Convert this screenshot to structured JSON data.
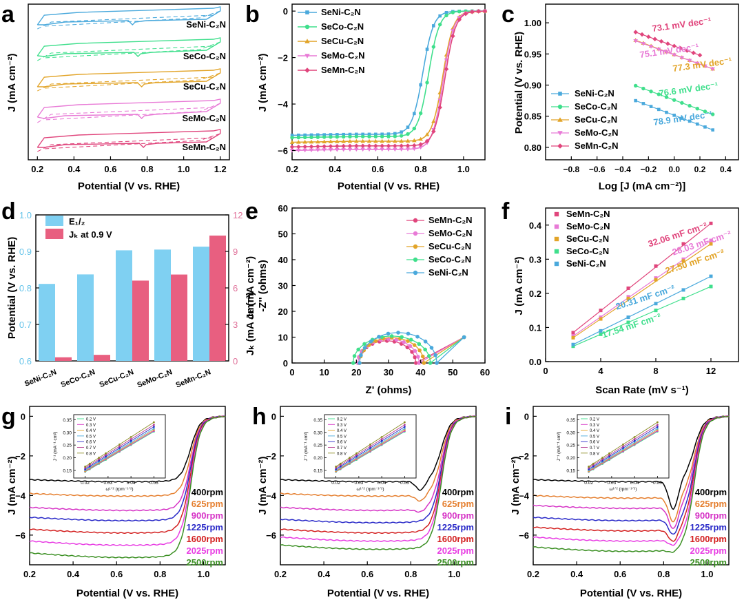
{
  "figure": {
    "panel_letters": [
      "a",
      "b",
      "c",
      "d",
      "e",
      "f",
      "g",
      "h",
      "i"
    ]
  },
  "colors": {
    "SeNi": "#4aa9dc",
    "SeCo": "#3fdf8c",
    "SeCu": "#e2a428",
    "SeMo": "#e87ad6",
    "SeMn": "#e0457c",
    "J400": "#000000",
    "J625": "#e57f2f",
    "J900": "#d633c6",
    "J1225": "#2a2ac8",
    "J1600": "#d31f1f",
    "J2025": "#e83de3",
    "J2500": "#3a8f22",
    "barE": "#7fd0f2",
    "barJ": "#e85f80",
    "axisRight": "#e0729a",
    "axisLeft": "#66c4ea"
  },
  "chart_data": [
    {
      "panel": "a",
      "type": "line",
      "title": "",
      "xlabel": "Potential (V vs. RHE)",
      "ylabel": "J (mA cm⁻²)",
      "xlim": [
        0.15,
        1.25
      ],
      "xticks": [
        "0.2",
        "0.4",
        "0.6",
        "0.8",
        "1.0",
        "1.2"
      ],
      "series": [
        {
          "name": "SeNi-C₂N",
          "key": "SeNi",
          "feature_x": 0.72
        },
        {
          "name": "SeCo-C₂N",
          "key": "SeCo",
          "feature_x": 0.75
        },
        {
          "name": "SeCu-C₂N",
          "key": "SeCu",
          "feature_x": 0.77
        },
        {
          "name": "SeMo-C₂N",
          "key": "SeMo",
          "feature_x": 0.77
        },
        {
          "name": "SeMn-C₂N",
          "key": "SeMn",
          "feature_x": 0.78
        }
      ],
      "series_labels": [
        "SeNi-C₂N",
        "SeCo-C₂N",
        "SeCu-C₂N",
        "SeMo-C₂N",
        "SeMn-C₂N"
      ]
    },
    {
      "panel": "b",
      "type": "line",
      "xlabel": "Potential (V vs. RHE)",
      "ylabel": "J (mA cm⁻²)",
      "xlim": [
        0.2,
        1.1
      ],
      "ylim": [
        -6.4,
        0.3
      ],
      "xticks": [
        "0.2",
        "0.4",
        "0.6",
        "0.8",
        "1.0"
      ],
      "yticks": [
        "0",
        "−2",
        "−4",
        "−6"
      ],
      "series": [
        {
          "name": "SeNi-C₂N",
          "key": "SeNi",
          "jl": -5.3,
          "e_half": 0.81
        },
        {
          "name": "SeCo-C₂N",
          "key": "SeCo",
          "jl": -5.4,
          "e_half": 0.837
        },
        {
          "name": "SeCu-C₂N",
          "key": "SeCu",
          "jl": -5.6,
          "e_half": 0.903
        },
        {
          "name": "SeMo-C₂N",
          "key": "SeMo",
          "jl": -5.95,
          "e_half": 0.905
        },
        {
          "name": "SeMn-C₂N",
          "key": "SeMn",
          "jl": -5.8,
          "e_half": 0.913
        }
      ],
      "legend": [
        "SeNi-C₂N",
        "SeCo-C₂N",
        "SeCu-C₂N",
        "SeMo-C₂N",
        "SeMn-C₂N"
      ]
    },
    {
      "panel": "c",
      "type": "scatter",
      "xlabel": "Log [J (mA cm⁻²)]",
      "ylabel": "Potential (V vs. RHE)",
      "xlim": [
        -1.0,
        0.5
      ],
      "ylim": [
        0.78,
        1.03
      ],
      "xticks": [
        "−0.8",
        "−0.6",
        "−0.4",
        "−0.2",
        "0.0",
        "0.2",
        "0.4"
      ],
      "yticks": [
        "0.80",
        "0.85",
        "0.90",
        "0.95",
        "1.00"
      ],
      "series": [
        {
          "name": "SeNi-C₂N",
          "key": "SeNi",
          "x_start": -0.3,
          "x_end": 0.3,
          "y_start": 0.875,
          "y_end": 0.828,
          "tafel": "78.9 mV dec⁻¹"
        },
        {
          "name": "SeCo-C₂N",
          "key": "SeCo",
          "x_start": -0.3,
          "x_end": 0.3,
          "y_start": 0.899,
          "y_end": 0.853,
          "tafel": "76.6 mV dec⁻¹"
        },
        {
          "name": "SeCu-C₂N",
          "key": "SeCu",
          "x_start": -0.3,
          "x_end": 0.3,
          "y_start": 0.972,
          "y_end": 0.926,
          "tafel": "77.3 mV dec⁻¹"
        },
        {
          "name": "SeMo-C₂N",
          "key": "SeMo",
          "x_start": -0.3,
          "x_end": 0.3,
          "y_start": 0.971,
          "y_end": 0.926,
          "tafel": "75.1 mV dec⁻¹"
        },
        {
          "name": "SeMn-C₂N",
          "key": "SeMn",
          "x_start": -0.3,
          "x_end": 0.2,
          "y_start": 0.985,
          "y_end": 0.948,
          "tafel": "73.1 mV dec⁻¹"
        }
      ],
      "legend": [
        "SeNi-C₂N",
        "SeCo-C₂N",
        "SeCu-C₂N",
        "SeMo-C₂N",
        "SeMn-C₂N"
      ],
      "tafel_labels": [
        "73.1 mV dec⁻¹",
        "75.1 mV dec⁻¹",
        "77.3 mV dec⁻¹",
        "76.6 mV dec⁻¹",
        "78.9 mV dec⁻¹"
      ]
    },
    {
      "panel": "d",
      "type": "bar",
      "categories": [
        "SeNi-C₂N",
        "SeCo-C₂N",
        "SeCu-C₂N",
        "SeMo-C₂N",
        "SeMn-C₂N"
      ],
      "series": [
        {
          "name": "E₁/₂",
          "axis": "left",
          "values": [
            0.811,
            0.837,
            0.903,
            0.905,
            0.913
          ]
        },
        {
          "name": "Jₖ at 0.9 V",
          "axis": "right",
          "values": [
            0.3,
            0.5,
            6.6,
            7.1,
            10.3
          ]
        }
      ],
      "ylabel_left": "Potential (V vs. RHE)",
      "ylabel_right": "Jₖ (mA cm⁻²)",
      "ylim_left": [
        0.6,
        1.0
      ],
      "ylim_right": [
        0,
        12
      ],
      "yticks_left": [
        "0.6",
        "0.7",
        "0.8",
        "0.9",
        "1.0"
      ],
      "yticks_right": [
        "0",
        "3",
        "6",
        "9",
        "12"
      ],
      "legend": [
        "E₁/₂",
        "Jₖ at 0.9 V"
      ]
    },
    {
      "panel": "e",
      "type": "scatter",
      "xlabel": "Z' (ohms)",
      "ylabel": "-Z'' (ohms)",
      "xlim": [
        0,
        60
      ],
      "ylim": [
        0,
        60
      ],
      "xticks": [
        "0",
        "10",
        "20",
        "30",
        "40",
        "50",
        "60"
      ],
      "yticks": [
        "0",
        "10",
        "20",
        "30",
        "40",
        "50",
        "60"
      ],
      "series": [
        {
          "name": "SeMn-C₂N",
          "key": "SeMn",
          "center": 29.5,
          "radius": 9.0,
          "scale": 1.7,
          "tail_start": 38.5,
          "tail_end": 53.5,
          "tail_top": 10
        },
        {
          "name": "SeMo-C₂N",
          "key": "SeMo",
          "center": 30.0,
          "radius": 9.5,
          "scale": 1.75,
          "tail_start": 39.5,
          "tail_end": 53.5,
          "tail_top": 10
        },
        {
          "name": "SeCu-C₂N",
          "key": "SeCu",
          "center": 31.0,
          "radius": 10.0,
          "scale": 1.75,
          "tail_start": 41.0,
          "tail_end": 53.5,
          "tail_top": 10
        },
        {
          "name": "SeCo-C₂N",
          "key": "SeCo",
          "center": 31.0,
          "radius": 12.0,
          "scale": 1.55,
          "tail_start": 43.0,
          "tail_end": 53.5,
          "tail_top": 10
        },
        {
          "name": "SeNi-C₂N",
          "key": "SeNi",
          "center": 33.0,
          "radius": 12.0,
          "scale": 1.75,
          "tail_start": 45.0,
          "tail_end": 53.5,
          "tail_top": 10
        }
      ],
      "legend": [
        "SeMn-C₂N",
        "SeMo-C₂N",
        "SeCu-C₂N",
        "SeCo-C₂N",
        "SeNi-C₂N"
      ]
    },
    {
      "panel": "f",
      "type": "scatter",
      "xlabel": "Scan Rate (mV s⁻¹)",
      "ylabel": "J (mA cm⁻²)",
      "xlim": [
        0,
        14
      ],
      "ylim": [
        0,
        0.45
      ],
      "xticks": [
        "0",
        "4",
        "8",
        "12"
      ],
      "yticks": [
        "0.0",
        "0.1",
        "0.2",
        "0.3",
        "0.4"
      ],
      "x": [
        2,
        4,
        6,
        8,
        10,
        12
      ],
      "series": [
        {
          "name": "SeMn-C₂N",
          "key": "SeMn",
          "values": [
            0.085,
            0.15,
            0.215,
            0.28,
            0.345,
            0.405
          ],
          "cdl": "32.06 mF cm⁻²"
        },
        {
          "name": "SeMo-C₂N",
          "key": "SeMo",
          "values": [
            0.075,
            0.13,
            0.19,
            0.245,
            0.3,
            0.355
          ],
          "cdl": "28.03 mF cm⁻²"
        },
        {
          "name": "SeCu-C₂N",
          "key": "SeCu",
          "values": [
            0.07,
            0.125,
            0.185,
            0.24,
            0.295,
            0.345
          ],
          "cdl": "27.50 mF cm⁻²"
        },
        {
          "name": "SeCo-C₂N",
          "key": "SeCo",
          "values": [
            0.045,
            0.08,
            0.115,
            0.15,
            0.185,
            0.22
          ],
          "cdl": "17.54 mF cm⁻²"
        },
        {
          "name": "SeNi-C₂N",
          "key": "SeNi",
          "values": [
            0.05,
            0.09,
            0.13,
            0.17,
            0.21,
            0.25
          ],
          "cdl": "20.31 mF cm⁻²"
        }
      ],
      "legend": [
        "SeMn-C₂N",
        "SeMo-C₂N",
        "SeCu-C₂N",
        "SeCo-C₂N",
        "SeNi-C₂N"
      ],
      "cdl_labels": [
        "32.06 mF cm⁻²",
        "28.03 mF cm⁻²",
        "27.50 mF cm⁻²",
        "20.31 mF cm⁻²",
        "17.54 mF cm⁻²"
      ]
    },
    {
      "panel": "g",
      "type": "line",
      "xlabel": "Potential (V vs. RHE)",
      "ylabel": "J (mA cm⁻²)",
      "xlim": [
        0.2,
        1.1
      ],
      "ylim": [
        -7.5,
        0.5
      ],
      "xticks": [
        "0.2",
        "0.4",
        "0.6",
        "0.8",
        "1.0"
      ],
      "yticks": [
        "0",
        "−2",
        "−4",
        "−6"
      ],
      "series": [
        {
          "name": "400rpm",
          "key": "J400",
          "jl": -3.2,
          "peak": 0
        },
        {
          "name": "625rpm",
          "key": "J625",
          "jl": -3.9,
          "peak": 0
        },
        {
          "name": "900rpm",
          "key": "J900",
          "jl": -4.6,
          "peak": 0
        },
        {
          "name": "1225rpm",
          "key": "J1225",
          "jl": -5.1,
          "peak": 0
        },
        {
          "name": "1600rpm",
          "key": "J1600",
          "jl": -5.7,
          "peak": 0
        },
        {
          "name": "2025rpm",
          "key": "J2025",
          "jl": -6.3,
          "peak": 0
        },
        {
          "name": "2500rpm",
          "key": "J2500",
          "jl": -6.9,
          "peak": 0
        }
      ],
      "labels": [
        "400rpm",
        "625rpm",
        "900rpm",
        "1225rpm",
        "1600rpm",
        "2025rpm",
        "2500rpm"
      ]
    },
    {
      "panel": "h",
      "type": "line",
      "xlabel": "Potential (V vs. RHE)",
      "ylabel": "J (mA cm⁻²)",
      "xlim": [
        0.2,
        1.1
      ],
      "ylim": [
        -7.5,
        0.5
      ],
      "xticks": [
        "0.2",
        "0.4",
        "0.6",
        "0.8",
        "1.0"
      ],
      "yticks": [
        "0",
        "−2",
        "−4",
        "−6"
      ],
      "series": [
        {
          "name": "400rpm",
          "key": "J400",
          "jl": -3.2,
          "peak": 0.3
        },
        {
          "name": "625rpm",
          "key": "J625",
          "jl": -3.9,
          "peak": 0.2
        },
        {
          "name": "900rpm",
          "key": "J900",
          "jl": -4.6,
          "peak": 0.1
        },
        {
          "name": "1225rpm",
          "key": "J1225",
          "jl": -5.2,
          "peak": 0
        },
        {
          "name": "1600rpm",
          "key": "J1600",
          "jl": -5.7,
          "peak": 0
        },
        {
          "name": "2025rpm",
          "key": "J2025",
          "jl": -6.1,
          "peak": 0
        },
        {
          "name": "2500rpm",
          "key": "J2500",
          "jl": -6.5,
          "peak": 0
        }
      ],
      "labels": [
        "400rpm",
        "625rpm",
        "900rpm",
        "1225rpm",
        "1600rpm",
        "2025rpm",
        "2500rpm"
      ]
    },
    {
      "panel": "i",
      "type": "line",
      "xlabel": "Potential (V vs. RHE)",
      "ylabel": "J (mA cm⁻²)",
      "xlim": [
        0.2,
        1.1
      ],
      "ylim": [
        -7.5,
        0.5
      ],
      "xticks": [
        "0.2",
        "0.4",
        "0.6",
        "0.8",
        "1.0"
      ],
      "yticks": [
        "0",
        "−2",
        "−4",
        "−6"
      ],
      "series": [
        {
          "name": "400rpm",
          "key": "J400",
          "jl": -3.2,
          "peak": 0.9
        },
        {
          "name": "625rpm",
          "key": "J625",
          "jl": -4.0,
          "peak": 0.8
        },
        {
          "name": "900rpm",
          "key": "J900",
          "jl": -4.5,
          "peak": 0.7
        },
        {
          "name": "1225rpm",
          "key": "J1225",
          "jl": -5.1,
          "peak": 0.5
        },
        {
          "name": "1600rpm",
          "key": "J1600",
          "jl": -5.6,
          "peak": 0.4
        },
        {
          "name": "2025rpm",
          "key": "J2025",
          "jl": -6.1,
          "peak": 0.2
        },
        {
          "name": "2500rpm",
          "key": "J2500",
          "jl": -6.6,
          "peak": 0.1
        }
      ],
      "labels": [
        "400rpm",
        "625rpm",
        "900rpm",
        "1225rpm",
        "1600rpm",
        "2025rpm",
        "2500rpm"
      ]
    }
  ],
  "kl_insets": {
    "xlabel": "ω¹ᐟ² (rpm⁻¹ᐟ²)",
    "ylabel": "J⁻¹ (mA⁻¹ cm²)",
    "xticks": [
      "0.02",
      "0.03",
      "0.04",
      "0.05"
    ],
    "yticks": [
      "0.15",
      "0.20",
      "0.25",
      "0.30",
      "0.35"
    ],
    "xlim": [
      0.015,
      0.055
    ],
    "ylim": [
      0.12,
      0.37
    ],
    "legend": [
      "0.2 V",
      "0.3 V",
      "0.4 V",
      "0.5 V",
      "0.6 V",
      "0.7 V",
      "0.8 V"
    ],
    "legend_colors": [
      "#3fdf8c",
      "#d633c6",
      "#e2a428",
      "#4aa9dc",
      "#2a2ac8",
      "#b53a8f",
      "#8a8a20"
    ],
    "x": [
      0.02,
      0.022,
      0.026,
      0.029,
      0.035,
      0.04,
      0.05
    ],
    "fits": [
      [
        0.144,
        0.303
      ],
      [
        0.146,
        0.306
      ],
      [
        0.148,
        0.31
      ],
      [
        0.151,
        0.315
      ],
      [
        0.155,
        0.322
      ],
      [
        0.16,
        0.33
      ],
      [
        0.165,
        0.34
      ]
    ]
  }
}
